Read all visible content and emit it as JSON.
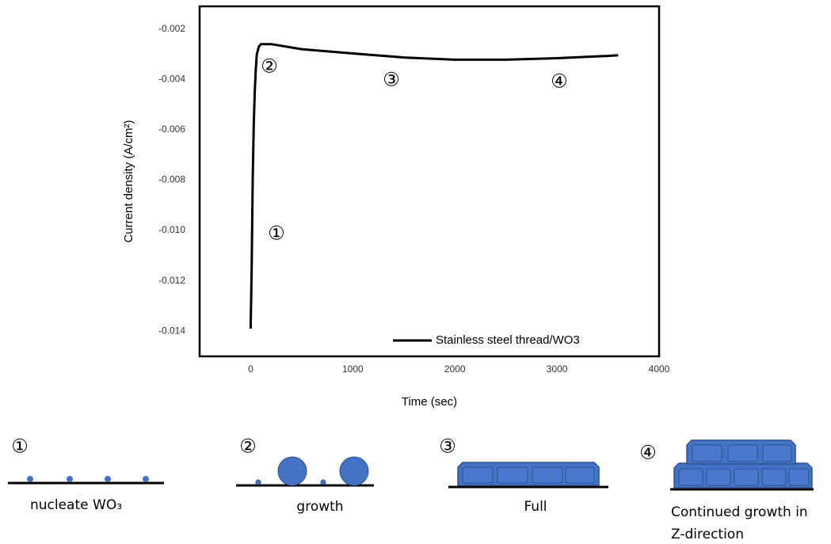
{
  "chart_data": {
    "type": "line",
    "xlabel": "Time (sec)",
    "ylabel": "Current density (A/cm²)",
    "xlim": [
      -500,
      4000
    ],
    "xticks": [
      0,
      1000,
      2000,
      3000,
      4000
    ],
    "ylim": [
      -0.015,
      -0.0011
    ],
    "yticks": [
      -0.002,
      -0.004,
      -0.006,
      -0.008,
      {
        "value": -0.01,
        "label": "-0.010"
      },
      -0.012,
      -0.014
    ],
    "legend": "lower right",
    "series": [
      {
        "name": "Stainless steel thread/WO3",
        "color": "#000000",
        "x": [
          0,
          10,
          20,
          30,
          40,
          50,
          60,
          80,
          100,
          200,
          500,
          1000,
          1500,
          2000,
          2500,
          3000,
          3500,
          3600
        ],
        "values": [
          -0.0139,
          -0.0115,
          -0.008,
          -0.0058,
          -0.0045,
          -0.0036,
          -0.003,
          -0.0027,
          -0.0026,
          -0.0026,
          -0.0028,
          -0.00297,
          -0.00313,
          -0.00322,
          -0.00322,
          -0.00316,
          -0.00307,
          -0.00304
        ]
      }
    ],
    "annotations": [
      "①",
      "②",
      "③",
      "④"
    ]
  },
  "diagram": {
    "stages": [
      {
        "number": "①",
        "label": [
          "nucleate WO₃"
        ]
      },
      {
        "number": "②",
        "label": [
          "growth"
        ]
      },
      {
        "number": "③",
        "label": [
          "Full"
        ]
      },
      {
        "number": "④",
        "label": [
          "Continued growth in",
          "Z-direction"
        ]
      }
    ]
  }
}
